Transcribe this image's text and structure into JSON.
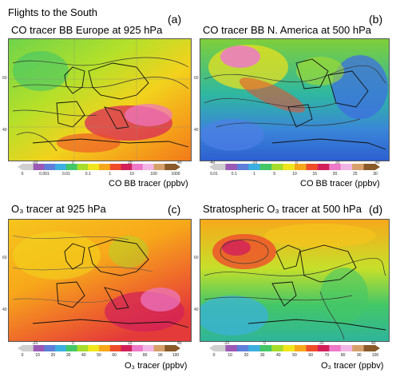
{
  "title": "Flights to the South",
  "panels": [
    {
      "id": "a",
      "label": "(a)",
      "title": "CO tracer BB Europe at 925 hPa",
      "lon_ticks": [
        "-20",
        "0",
        "20",
        "40"
      ],
      "lat_ticks": [
        "60",
        "40"
      ],
      "colorbar": {
        "label": "CO BB tracer (ppbv)",
        "ticks": [
          "0",
          "0.001",
          "0.01",
          "0.1",
          "1",
          "10",
          "100",
          "1000"
        ],
        "colors": [
          "#cfcfcf",
          "#9b59b6",
          "#5e7fd9",
          "#3bb0e0",
          "#44c767",
          "#a6dd2b",
          "#f1e61c",
          "#f7a81a",
          "#ef4d2a",
          "#d21f5a",
          "#ed79c8",
          "#f1b6e5",
          "#d7a06a",
          "#8a5a2a"
        ]
      }
    },
    {
      "id": "b",
      "label": "(b)",
      "title": "CO tracer BB N. America at 500 hPa",
      "lon_ticks": [
        "-40",
        "-20",
        "0",
        "20",
        "40"
      ],
      "lat_ticks": [
        "60",
        "40"
      ],
      "colorbar": {
        "label": "CO BB tracer (ppbv)",
        "ticks": [
          "0.01",
          "0.1",
          "1",
          "5",
          "10",
          "15",
          "20",
          "25",
          "30"
        ],
        "colors": [
          "#cfcfcf",
          "#9b59b6",
          "#5e7fd9",
          "#3bb0e0",
          "#44c767",
          "#a6dd2b",
          "#f1e61c",
          "#f7a81a",
          "#ef4d2a",
          "#d21f5a",
          "#ed79c8",
          "#f1b6e5",
          "#d7a06a",
          "#8a5a2a"
        ]
      }
    },
    {
      "id": "c",
      "label": "(c)",
      "title": "O₃ tracer at 925 hPa",
      "lon_ticks": [
        "-20",
        "0",
        "20",
        "40"
      ],
      "lat_ticks": [
        "60",
        "40"
      ],
      "colorbar": {
        "label": "O₃ tracer (ppbv)",
        "ticks": [
          "0",
          "10",
          "20",
          "30",
          "40",
          "50",
          "60",
          "70",
          "80",
          "90",
          "100"
        ],
        "colors": [
          "#cfcfcf",
          "#9b59b6",
          "#5e7fd9",
          "#3bb0e0",
          "#44c767",
          "#a6dd2b",
          "#f1e61c",
          "#f7a81a",
          "#ef4d2a",
          "#d21f5a",
          "#ed79c8",
          "#f1b6e5",
          "#d7a06a",
          "#8a5a2a"
        ]
      }
    },
    {
      "id": "d",
      "label": "(d)",
      "title": "Stratospheric O₃ tracer at 500 hPa",
      "lon_ticks": [
        "-20",
        "0",
        "20",
        "40"
      ],
      "lat_ticks": [
        "60",
        "40"
      ],
      "colorbar": {
        "label": "O₃ tracer (ppbv)",
        "ticks": [
          "0",
          "10",
          "20",
          "30",
          "40",
          "50",
          "60",
          "70",
          "80",
          "90",
          "100"
        ],
        "colors": [
          "#cfcfcf",
          "#9b59b6",
          "#5e7fd9",
          "#3bb0e0",
          "#44c767",
          "#a6dd2b",
          "#f1e61c",
          "#f7a81a",
          "#ef4d2a",
          "#d21f5a",
          "#ed79c8",
          "#f1b6e5",
          "#d7a06a",
          "#8a5a2a"
        ]
      }
    }
  ]
}
